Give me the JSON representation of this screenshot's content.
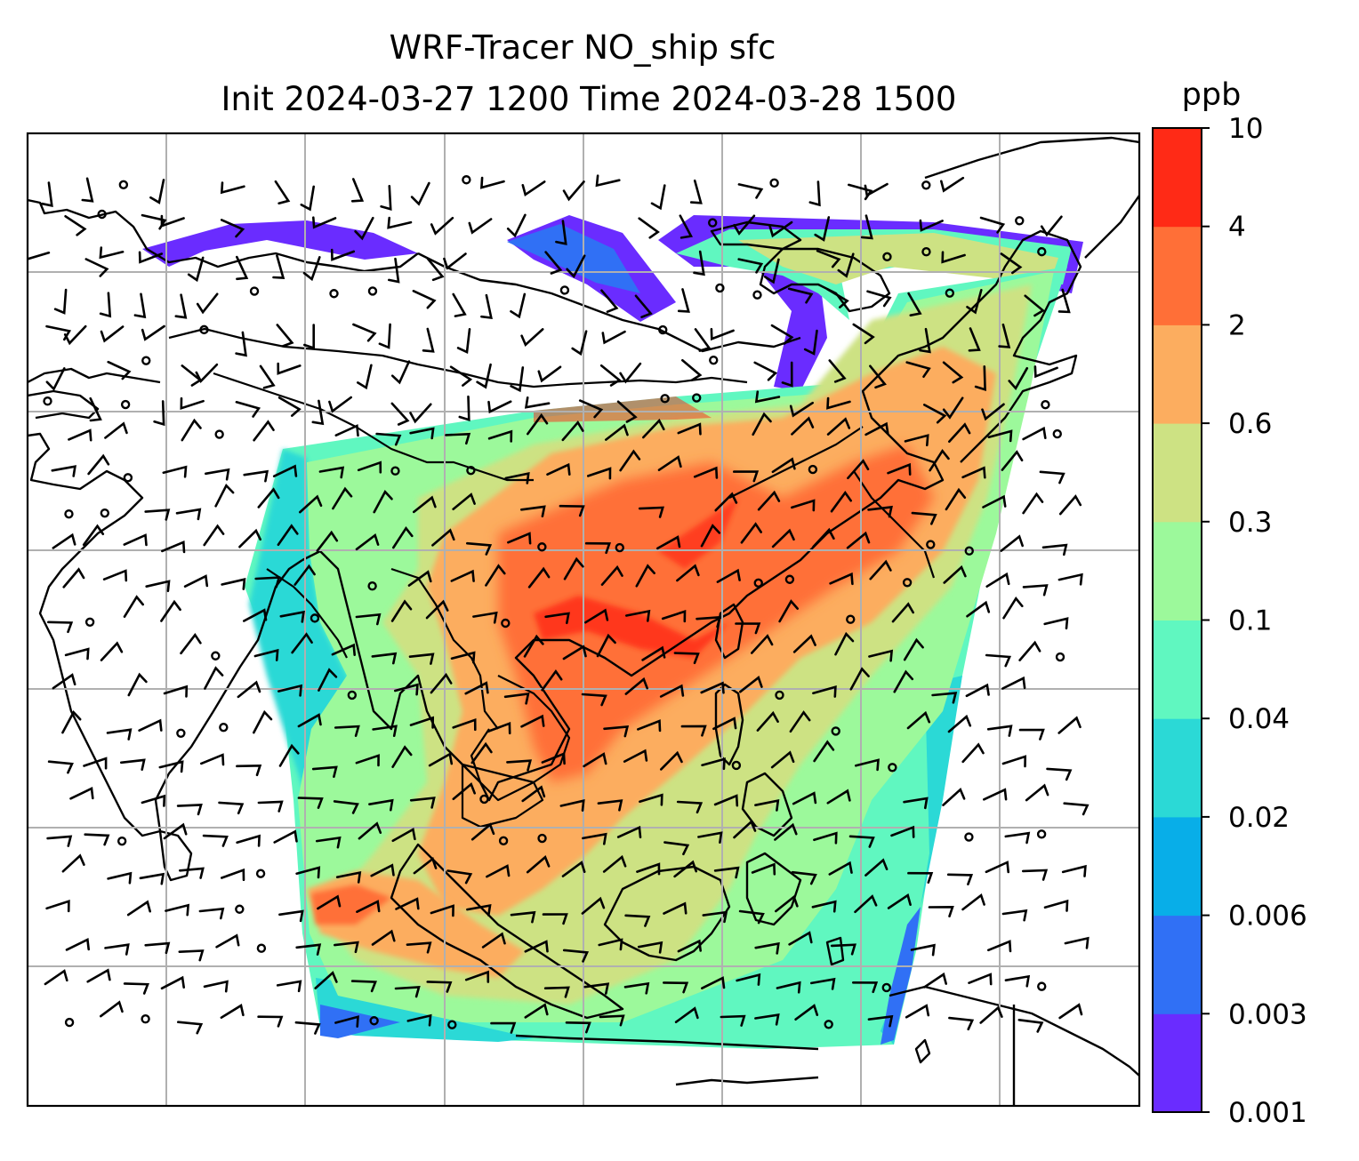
{
  "title": {
    "line1": "WRF-Tracer NO_ship sfc",
    "line2": "Init 2024-03-27 1200 Time 2024-03-28 1500"
  },
  "colorbar": {
    "unit": "ppb",
    "levels": [
      "0.001",
      "0.003",
      "0.006",
      "0.02",
      "0.04",
      "0.1",
      "0.3",
      "0.6",
      "2",
      "4",
      "10"
    ],
    "colors": [
      "#6a2cff",
      "#3070f5",
      "#08aee8",
      "#2bd9d6",
      "#60f7c0",
      "#9cf99b",
      "#cde283",
      "#fcad5f",
      "#ff6f37",
      "#ff2a16"
    ]
  },
  "map": {
    "gridlines": true,
    "features": [
      "coastlines",
      "country-borders",
      "wind-barbs",
      "concentration-shading"
    ]
  }
}
